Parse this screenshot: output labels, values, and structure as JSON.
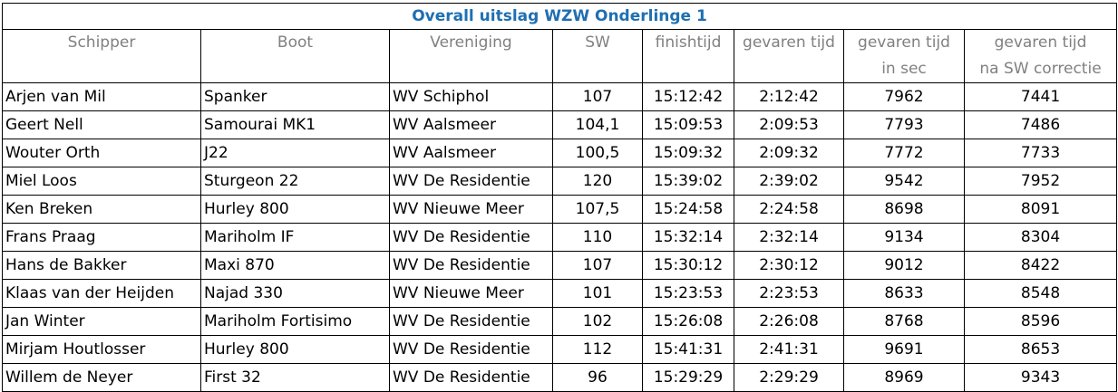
{
  "title": "Overall uitslag WZW Onderlinge 1",
  "colors": {
    "title": "#1f6fb2",
    "header": "#808080",
    "border": "#000000"
  },
  "headers": [
    {
      "lines": [
        "Schipper"
      ]
    },
    {
      "lines": [
        "Boot"
      ]
    },
    {
      "lines": [
        "Vereniging"
      ]
    },
    {
      "lines": [
        "SW"
      ]
    },
    {
      "lines": [
        "finishtijd"
      ]
    },
    {
      "lines": [
        "gevaren tijd"
      ]
    },
    {
      "lines": [
        "gevaren tijd",
        "in sec"
      ]
    },
    {
      "lines": [
        "gevaren tijd",
        "na SW correctie"
      ]
    }
  ],
  "rows": [
    [
      "Arjen van Mil",
      "Spanker",
      "WV Schiphol",
      "107",
      "15:12:42",
      "2:12:42",
      "7962",
      "7441"
    ],
    [
      "Geert Nell",
      "Samourai MK1",
      "WV Aalsmeer",
      "104,1",
      "15:09:53",
      "2:09:53",
      "7793",
      "7486"
    ],
    [
      "Wouter Orth",
      "J22",
      "WV Aalsmeer",
      "100,5",
      "15:09:32",
      "2:09:32",
      "7772",
      "7733"
    ],
    [
      "Miel Loos",
      "Sturgeon 22",
      "WV De Residentie",
      "120",
      "15:39:02",
      "2:39:02",
      "9542",
      "7952"
    ],
    [
      "Ken Breken",
      "Hurley 800",
      "WV Nieuwe Meer",
      "107,5",
      "15:24:58",
      "2:24:58",
      "8698",
      "8091"
    ],
    [
      "Frans Praag",
      "Mariholm IF",
      "WV De Residentie",
      "110",
      "15:32:14",
      "2:32:14",
      "9134",
      "8304"
    ],
    [
      "Hans de Bakker",
      "Maxi 870",
      "WV De Residentie",
      "107",
      "15:30:12",
      "2:30:12",
      "9012",
      "8422"
    ],
    [
      "Klaas van der Heijden",
      "Najad 330",
      "WV Nieuwe Meer",
      "101",
      "15:23:53",
      "2:23:53",
      "8633",
      "8548"
    ],
    [
      "Jan Winter",
      "Mariholm Fortisimo",
      "WV De Residentie",
      "102",
      "15:26:08",
      "2:26:08",
      "8768",
      "8596"
    ],
    [
      "Mirjam Houtlosser",
      "Hurley 800",
      "WV De Residentie",
      "112",
      "15:41:31",
      "2:41:31",
      "9691",
      "8653"
    ],
    [
      "Willem de Neyer",
      "First 32",
      "WV De Residentie",
      "96",
      "15:29:29",
      "2:29:29",
      "8969",
      "9343"
    ]
  ]
}
